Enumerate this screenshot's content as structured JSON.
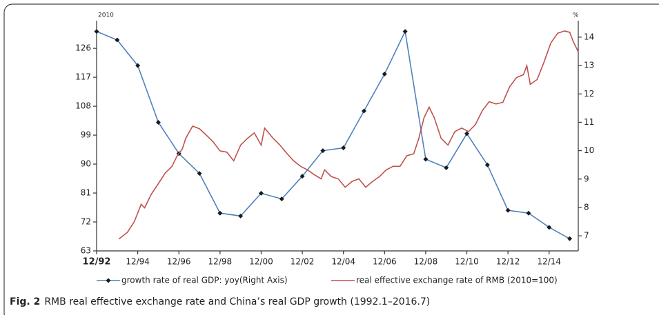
{
  "chart_data": {
    "type": "line",
    "caption_label": "Fig. 2",
    "caption": "RMB real effective exchange rate and China’s real GDP growth (1992.1–2016.7)",
    "y_axis_label": "2010",
    "y2_axis_label": "%",
    "xlim": [
      0,
      281
    ],
    "xticks": [
      {
        "value": 0,
        "label": "12/92"
      },
      {
        "value": 24,
        "label": "12/94"
      },
      {
        "value": 48,
        "label": "12/96"
      },
      {
        "value": 72,
        "label": "12/98"
      },
      {
        "value": 96,
        "label": "12/00"
      },
      {
        "value": 120,
        "label": "12/02"
      },
      {
        "value": 144,
        "label": "12/04"
      },
      {
        "value": 168,
        "label": "12/06"
      },
      {
        "value": 192,
        "label": "12/08"
      },
      {
        "value": 216,
        "label": "12/10"
      },
      {
        "value": 240,
        "label": "12/12"
      },
      {
        "value": 264,
        "label": "12/14"
      }
    ],
    "ylim": [
      63,
      134.6
    ],
    "yticks": [
      63,
      72,
      81,
      90,
      99,
      108,
      117,
      126
    ],
    "y2lim": [
      6.47,
      14.58
    ],
    "y2ticks": [
      7,
      8,
      9,
      10,
      11,
      12,
      13,
      14
    ],
    "series": [
      {
        "name": "growth rate of real GDP: yoy(Right Axis)",
        "color": "#4f81bd",
        "axis": "y2",
        "marker": "diamond",
        "x": [
          0,
          12,
          24,
          36,
          48,
          60,
          72,
          84,
          96,
          108,
          120,
          132,
          144,
          156,
          168,
          180,
          192,
          204,
          216,
          228,
          240,
          252,
          264,
          276
        ],
        "values": [
          14.2,
          13.9,
          13.0,
          11.0,
          9.9,
          9.2,
          7.8,
          7.7,
          8.5,
          8.3,
          9.1,
          10.0,
          10.1,
          11.4,
          12.7,
          14.2,
          9.7,
          9.4,
          10.6,
          9.5,
          7.9,
          7.8,
          7.3,
          6.9
        ]
      },
      {
        "name": "real effective exchange rate of RMB (2010=100)",
        "color": "#c0504d",
        "x": [
          13,
          18,
          22,
          26,
          28,
          32,
          36,
          40,
          44,
          47,
          50,
          52,
          56,
          60,
          64,
          68,
          72,
          76,
          80,
          84,
          88,
          92,
          96,
          98,
          103,
          107,
          111,
          115,
          119,
          123,
          127,
          131,
          133,
          137,
          141,
          145,
          149,
          153,
          157,
          161,
          165,
          169,
          173,
          177,
          181,
          185,
          188,
          191,
          194,
          197,
          201,
          205,
          209,
          213,
          217,
          221,
          225,
          229,
          233,
          237,
          241,
          245,
          249,
          251,
          253,
          257,
          261,
          265,
          269,
          273,
          276,
          278,
          281
        ],
        "values": [
          66.7,
          68.8,
          72.1,
          77.5,
          76.4,
          80.7,
          83.9,
          87.2,
          89.3,
          92.6,
          94.7,
          98.0,
          101.8,
          101.0,
          99.0,
          96.9,
          94.1,
          93.7,
          91.0,
          95.9,
          98.0,
          99.7,
          95.9,
          101.2,
          98.0,
          95.9,
          93.3,
          91.0,
          89.3,
          88.2,
          86.7,
          85.4,
          88.2,
          86.1,
          85.4,
          82.8,
          84.6,
          85.4,
          82.8,
          84.6,
          86.1,
          88.2,
          89.3,
          89.3,
          92.6,
          93.2,
          98.0,
          104.4,
          107.7,
          104.4,
          98.0,
          95.9,
          100.1,
          101.2,
          100.1,
          102.3,
          106.6,
          109.4,
          108.7,
          109.2,
          114.1,
          116.9,
          117.8,
          120.6,
          114.8,
          116.3,
          121.7,
          127.7,
          130.7,
          131.4,
          131.0,
          128.2,
          124.9
        ]
      }
    ]
  }
}
